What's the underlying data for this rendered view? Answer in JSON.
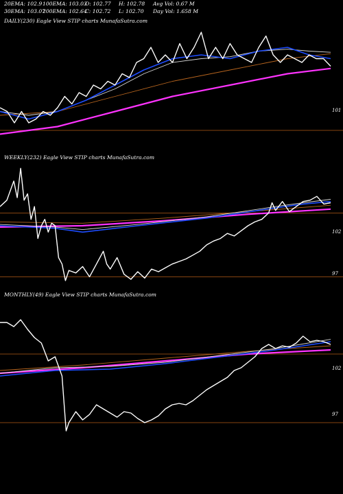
{
  "header": {
    "row1": [
      "20EMA: 102.9",
      "100EMA: 103.03",
      "O: 102.77",
      "H: 102.78",
      "Avg Vol: 0.67 M"
    ],
    "row2": [
      "30EMA: 103.07",
      "200EMA: 102.64",
      "C: 102.72",
      "L: 102.70",
      "Day Vol: 1.658 M"
    ]
  },
  "panels": {
    "daily": {
      "title": "DAILY(230) Eagle   View  STIP charts MunafaSutra.com",
      "level_label": "101"
    },
    "weekly": {
      "title": "WEEKLY(232) Eagle   View  STIP charts MunafaSutra.com",
      "level_labels": [
        "102",
        "97"
      ]
    },
    "monthly": {
      "title": "MONTHLY(49) Eagle   View  STIP charts MunafaSutra.com",
      "level_labels": [
        "102",
        "97"
      ]
    }
  },
  "colors": {
    "background": "#000000",
    "price": "#ffffff",
    "ema_short": "#1e4dff",
    "ema_long": "#ff33ff",
    "ema_mid": "#d9d9d9",
    "ema_brown": "#b8651e",
    "level_line": "#b35c17"
  },
  "chart_data": [
    {
      "type": "line",
      "name": "DAILY(230)",
      "x": "session index",
      "yrange": [
        100.6,
        103.8
      ],
      "level": 101,
      "series": [
        {
          "name": "price",
          "values": [
            [
              0,
              101.6
            ],
            [
              5,
              101.5
            ],
            [
              10,
              101.2
            ],
            [
              15,
              101.5
            ],
            [
              20,
              101.2
            ],
            [
              25,
              101.3
            ],
            [
              30,
              101.5
            ],
            [
              35,
              101.4
            ],
            [
              40,
              101.6
            ],
            [
              45,
              101.9
            ],
            [
              50,
              101.7
            ],
            [
              55,
              102.0
            ],
            [
              60,
              101.9
            ],
            [
              65,
              102.2
            ],
            [
              70,
              102.1
            ],
            [
              75,
              102.3
            ],
            [
              80,
              102.2
            ],
            [
              85,
              102.5
            ],
            [
              90,
              102.4
            ],
            [
              95,
              102.8
            ],
            [
              100,
              102.9
            ],
            [
              105,
              103.2
            ],
            [
              110,
              102.8
            ],
            [
              115,
              103.0
            ],
            [
              120,
              102.8
            ],
            [
              125,
              103.3
            ],
            [
              130,
              102.9
            ],
            [
              135,
              103.2
            ],
            [
              140,
              103.6
            ],
            [
              145,
              102.9
            ],
            [
              150,
              103.2
            ],
            [
              155,
              102.9
            ],
            [
              160,
              103.3
            ],
            [
              165,
              103.0
            ],
            [
              170,
              102.9
            ],
            [
              175,
              102.8
            ],
            [
              180,
              103.2
            ],
            [
              185,
              103.5
            ],
            [
              190,
              103.0
            ],
            [
              195,
              102.8
            ],
            [
              200,
              103.0
            ],
            [
              205,
              102.9
            ],
            [
              210,
              102.8
            ],
            [
              215,
              103.0
            ],
            [
              220,
              102.9
            ],
            [
              225,
              102.9
            ],
            [
              230,
              102.7
            ]
          ]
        },
        {
          "name": "20EMA",
          "values": [
            [
              0,
              101.5
            ],
            [
              20,
              101.3
            ],
            [
              40,
              101.5
            ],
            [
              60,
              101.8
            ],
            [
              80,
              102.2
            ],
            [
              100,
              102.6
            ],
            [
              120,
              102.9
            ],
            [
              140,
              103.0
            ],
            [
              160,
              102.9
            ],
            [
              180,
              103.1
            ],
            [
              200,
              103.2
            ],
            [
              215,
              103.0
            ],
            [
              230,
              102.9
            ]
          ]
        },
        {
          "name": "30EMA",
          "values": [
            [
              0,
              101.5
            ],
            [
              20,
              101.4
            ],
            [
              40,
              101.5
            ],
            [
              60,
              101.8
            ],
            [
              80,
              102.1
            ],
            [
              100,
              102.5
            ],
            [
              120,
              102.8
            ],
            [
              140,
              102.9
            ],
            [
              160,
              102.95
            ],
            [
              180,
              103.1
            ],
            [
              200,
              103.15
            ],
            [
              215,
              103.1
            ],
            [
              230,
              103.07
            ]
          ]
        },
        {
          "name": "100EMA",
          "values": [
            [
              0,
              101.4
            ],
            [
              40,
              101.5
            ],
            [
              80,
              101.9
            ],
            [
              120,
              102.3
            ],
            [
              160,
              102.6
            ],
            [
              200,
              102.9
            ],
            [
              230,
              103.03
            ]
          ]
        },
        {
          "name": "200EMA",
          "values": [
            [
              0,
              100.9
            ],
            [
              40,
              101.1
            ],
            [
              80,
              101.5
            ],
            [
              120,
              101.9
            ],
            [
              160,
              102.2
            ],
            [
              200,
              102.5
            ],
            [
              230,
              102.64
            ]
          ]
        }
      ]
    },
    {
      "type": "line",
      "name": "WEEKLY(232)",
      "x": "week index",
      "yrange": [
        96,
        106
      ],
      "levels": [
        102,
        97
      ],
      "series": [
        {
          "name": "price",
          "values": [
            [
              0,
              102.5
            ],
            [
              10,
              103.0
            ],
            [
              20,
              104.5
            ],
            [
              25,
              103.2
            ],
            [
              30,
              105.5
            ],
            [
              35,
              103.0
            ],
            [
              40,
              103.5
            ],
            [
              45,
              101.5
            ],
            [
              50,
              102.5
            ],
            [
              55,
              100.0
            ],
            [
              60,
              101.0
            ],
            [
              65,
              101.5
            ],
            [
              70,
              100.5
            ],
            [
              75,
              101.2
            ],
            [
              80,
              101.0
            ],
            [
              85,
              98.5
            ],
            [
              90,
              98.0
            ],
            [
              95,
              96.7
            ],
            [
              100,
              97.5
            ],
            [
              110,
              97.3
            ],
            [
              120,
              97.8
            ],
            [
              130,
              97.0
            ],
            [
              140,
              98.0
            ],
            [
              150,
              99.0
            ],
            [
              155,
              98.0
            ],
            [
              160,
              97.6
            ],
            [
              170,
              98.5
            ],
            [
              180,
              97.2
            ],
            [
              190,
              96.8
            ],
            [
              200,
              97.4
            ],
            [
              210,
              96.9
            ],
            [
              220,
              97.6
            ],
            [
              230,
              97.4
            ],
            [
              240,
              97.7
            ],
            [
              250,
              98.0
            ],
            [
              260,
              98.2
            ],
            [
              270,
              98.4
            ],
            [
              280,
              98.7
            ],
            [
              290,
              99.0
            ],
            [
              300,
              99.5
            ],
            [
              310,
              99.8
            ],
            [
              320,
              100.0
            ],
            [
              330,
              100.4
            ],
            [
              340,
              100.2
            ],
            [
              350,
              100.6
            ],
            [
              360,
              101.0
            ],
            [
              370,
              101.3
            ],
            [
              380,
              101.5
            ],
            [
              390,
              102.0
            ],
            [
              395,
              102.8
            ],
            [
              400,
              102.2
            ],
            [
              410,
              102.9
            ],
            [
              420,
              102.1
            ],
            [
              430,
              102.5
            ],
            [
              440,
              102.9
            ],
            [
              450,
              103.0
            ],
            [
              460,
              103.3
            ],
            [
              470,
              102.7
            ],
            [
              480,
              102.8
            ]
          ]
        },
        {
          "name": "20EMA",
          "values": [
            [
              0,
              101.0
            ],
            [
              80,
              100.8
            ],
            [
              120,
              100.5
            ],
            [
              200,
              101.0
            ],
            [
              300,
              101.6
            ],
            [
              400,
              102.4
            ],
            [
              440,
              102.7
            ],
            [
              480,
              102.9
            ]
          ]
        },
        {
          "name": "30EMA",
          "values": [
            [
              0,
              101.1
            ],
            [
              80,
              100.9
            ],
            [
              120,
              100.7
            ],
            [
              200,
              101.1
            ],
            [
              300,
              101.7
            ],
            [
              400,
              102.5
            ],
            [
              440,
              102.8
            ],
            [
              480,
              103.07
            ]
          ]
        },
        {
          "name": "100EMA",
          "values": [
            [
              0,
              101.3
            ],
            [
              120,
              101.2
            ],
            [
              240,
              101.6
            ],
            [
              360,
              102.1
            ],
            [
              480,
              102.6
            ]
          ]
        },
        {
          "name": "200EMA",
          "values": [
            [
              0,
              100.9
            ],
            [
              120,
              101.0
            ],
            [
              240,
              101.4
            ],
            [
              360,
              101.9
            ],
            [
              480,
              102.3
            ]
          ]
        }
      ]
    },
    {
      "type": "line",
      "name": "MONTHLY(49)",
      "x": "month index",
      "yrange": [
        96,
        106
      ],
      "levels": [
        102,
        97
      ],
      "series": [
        {
          "name": "price",
          "values": [
            [
              0,
              104.3
            ],
            [
              10,
              104.3
            ],
            [
              20,
              104.0
            ],
            [
              30,
              104.5
            ],
            [
              40,
              103.8
            ],
            [
              50,
              103.2
            ],
            [
              60,
              102.8
            ],
            [
              70,
              101.5
            ],
            [
              80,
              101.8
            ],
            [
              90,
              100.4
            ],
            [
              96,
              96.4
            ],
            [
              100,
              97.0
            ],
            [
              110,
              97.8
            ],
            [
              120,
              97.2
            ],
            [
              130,
              97.6
            ],
            [
              140,
              98.3
            ],
            [
              150,
              98.0
            ],
            [
              160,
              97.7
            ],
            [
              170,
              97.4
            ],
            [
              180,
              97.8
            ],
            [
              190,
              97.7
            ],
            [
              200,
              97.3
            ],
            [
              210,
              97.0
            ],
            [
              220,
              97.2
            ],
            [
              230,
              97.5
            ],
            [
              240,
              98.0
            ],
            [
              250,
              98.3
            ],
            [
              260,
              98.4
            ],
            [
              270,
              98.3
            ],
            [
              280,
              98.6
            ],
            [
              290,
              99.0
            ],
            [
              300,
              99.4
            ],
            [
              310,
              99.7
            ],
            [
              320,
              100.0
            ],
            [
              330,
              100.3
            ],
            [
              340,
              100.8
            ],
            [
              350,
              101.0
            ],
            [
              360,
              101.4
            ],
            [
              370,
              101.8
            ],
            [
              380,
              102.4
            ],
            [
              390,
              102.7
            ],
            [
              400,
              102.4
            ],
            [
              410,
              102.6
            ],
            [
              420,
              102.5
            ],
            [
              430,
              102.8
            ],
            [
              440,
              103.3
            ],
            [
              450,
              102.9
            ],
            [
              460,
              103.0
            ],
            [
              470,
              102.9
            ],
            [
              480,
              102.7
            ]
          ]
        },
        {
          "name": "20EMA",
          "values": [
            [
              0,
              100.4
            ],
            [
              80,
              100.8
            ],
            [
              160,
              100.9
            ],
            [
              240,
              101.3
            ],
            [
              320,
              101.8
            ],
            [
              400,
              102.3
            ],
            [
              480,
              102.9
            ]
          ]
        },
        {
          "name": "30EMA",
          "values": [
            [
              0,
              100.6
            ],
            [
              80,
              101.0
            ],
            [
              160,
              101.1
            ],
            [
              240,
              101.4
            ],
            [
              320,
              101.9
            ],
            [
              400,
              102.4
            ],
            [
              480,
              103.07
            ]
          ]
        },
        {
          "name": "100EMA",
          "values": [
            [
              0,
              100.8
            ],
            [
              120,
              101.2
            ],
            [
              240,
              101.7
            ],
            [
              360,
              102.2
            ],
            [
              480,
              102.6
            ]
          ]
        },
        {
          "name": "200EMA",
          "values": [
            [
              0,
              100.6
            ],
            [
              120,
              101.0
            ],
            [
              240,
              101.5
            ],
            [
              360,
              102.0
            ],
            [
              480,
              102.3
            ]
          ]
        }
      ]
    }
  ]
}
